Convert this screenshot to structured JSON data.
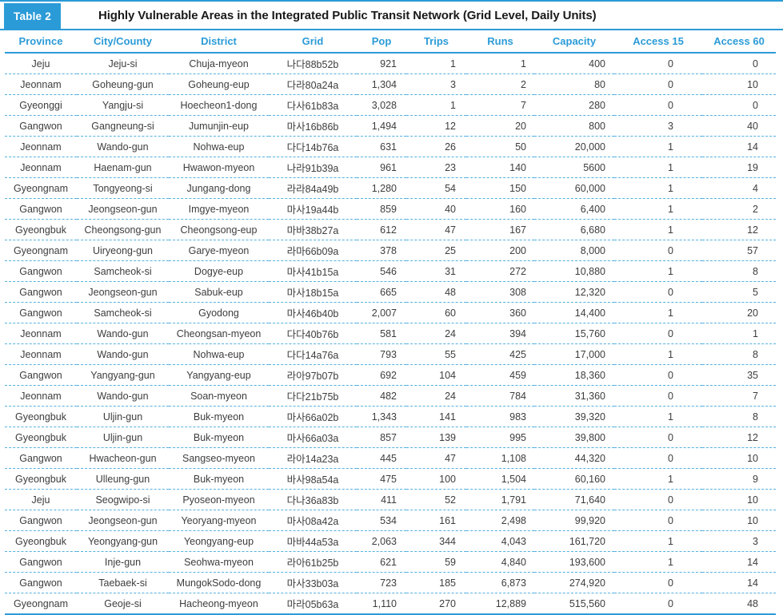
{
  "colors": {
    "accent": "#2b9bd7",
    "dashed": "#55b1e0"
  },
  "caption": {
    "label": "Table 2",
    "title": "Highly Vulnerable Areas in the Integrated Public Transit Network (Grid Level, Daily Units)"
  },
  "table": {
    "columns": [
      "Province",
      "City/County",
      "District",
      "Grid",
      "Pop",
      "Trips",
      "Runs",
      "Capacity",
      "Access 15",
      "Access 60"
    ],
    "rows": [
      [
        "Jeju",
        "Jeju-si",
        "Chuja-myeon",
        "나다88b52b",
        "921",
        "1",
        "1",
        "400",
        "0",
        "0"
      ],
      [
        "Jeonnam",
        "Goheung-gun",
        "Goheung-eup",
        "다라80a24a",
        "1,304",
        "3",
        "2",
        "80",
        "0",
        "10"
      ],
      [
        "Gyeonggi",
        "Yangju-si",
        "Hoecheon1-dong",
        "다사61b83a",
        "3,028",
        "1",
        "7",
        "280",
        "0",
        "0"
      ],
      [
        "Gangwon",
        "Gangneung-si",
        "Jumunjin-eup",
        "마사16b86b",
        "1,494",
        "12",
        "20",
        "800",
        "3",
        "40"
      ],
      [
        "Jeonnam",
        "Wando-gun",
        "Nohwa-eup",
        "다다14b76a",
        "631",
        "26",
        "50",
        "20,000",
        "1",
        "14"
      ],
      [
        "Jeonnam",
        "Haenam-gun",
        "Hwawon-myeon",
        "나라91b39a",
        "961",
        "23",
        "140",
        "5600",
        "1",
        "19"
      ],
      [
        "Gyeongnam",
        "Tongyeong-si",
        "Jungang-dong",
        "라라84a49b",
        "1,280",
        "54",
        "150",
        "60,000",
        "1",
        "4"
      ],
      [
        "Gangwon",
        "Jeongseon-gun",
        "Imgye-myeon",
        "마사19a44b",
        "859",
        "40",
        "160",
        "6,400",
        "1",
        "2"
      ],
      [
        "Gyeongbuk",
        "Cheongsong-gun",
        "Cheongsong-eup",
        "마바38b27a",
        "612",
        "47",
        "167",
        "6,680",
        "1",
        "12"
      ],
      [
        "Gyeongnam",
        "Uiryeong-gun",
        "Garye-myeon",
        "라마66b09a",
        "378",
        "25",
        "200",
        "8,000",
        "0",
        "57"
      ],
      [
        "Gangwon",
        "Samcheok-si",
        "Dogye-eup",
        "마사41b15a",
        "546",
        "31",
        "272",
        "10,880",
        "1",
        "8"
      ],
      [
        "Gangwon",
        "Jeongseon-gun",
        "Sabuk-eup",
        "마사18b15a",
        "665",
        "48",
        "308",
        "12,320",
        "0",
        "5"
      ],
      [
        "Gangwon",
        "Samcheok-si",
        "Gyodong",
        "마사46b40b",
        "2,007",
        "60",
        "360",
        "14,400",
        "1",
        "20"
      ],
      [
        "Jeonnam",
        "Wando-gun",
        "Cheongsan-myeon",
        "다다40b76b",
        "581",
        "24",
        "394",
        "15,760",
        "0",
        "1"
      ],
      [
        "Jeonnam",
        "Wando-gun",
        "Nohwa-eup",
        "다다14a76a",
        "793",
        "55",
        "425",
        "17,000",
        "1",
        "8"
      ],
      [
        "Gangwon",
        "Yangyang-gun",
        "Yangyang-eup",
        "라아97b07b",
        "692",
        "104",
        "459",
        "18,360",
        "0",
        "35"
      ],
      [
        "Jeonnam",
        "Wando-gun",
        "Soan-myeon",
        "다다21b75b",
        "482",
        "24",
        "784",
        "31,360",
        "0",
        "7"
      ],
      [
        "Gyeongbuk",
        "Uljin-gun",
        "Buk-myeon",
        "마사66a02b",
        "1,343",
        "141",
        "983",
        "39,320",
        "1",
        "8"
      ],
      [
        "Gyeongbuk",
        "Uljin-gun",
        "Buk-myeon",
        "마사66a03a",
        "857",
        "139",
        "995",
        "39,800",
        "0",
        "12"
      ],
      [
        "Gangwon",
        "Hwacheon-gun",
        "Sangseo-myeon",
        "라아14a23a",
        "445",
        "47",
        "1,108",
        "44,320",
        "0",
        "10"
      ],
      [
        "Gyeongbuk",
        "Ulleung-gun",
        "Buk-myeon",
        "바사98a54a",
        "475",
        "100",
        "1,504",
        "60,160",
        "1",
        "9"
      ],
      [
        "Jeju",
        "Seogwipo-si",
        "Pyoseon-myeon",
        "다나36a83b",
        "411",
        "52",
        "1,791",
        "71,640",
        "0",
        "10"
      ],
      [
        "Gangwon",
        "Jeongseon-gun",
        "Yeoryang-myeon",
        "마사08a42a",
        "534",
        "161",
        "2,498",
        "99,920",
        "0",
        "10"
      ],
      [
        "Gyeongbuk",
        "Yeongyang-gun",
        "Yeongyang-eup",
        "마바44a53a",
        "2,063",
        "344",
        "4,043",
        "161,720",
        "1",
        "3"
      ],
      [
        "Gangwon",
        "Inje-gun",
        "Seohwa-myeon",
        "라아61b25b",
        "621",
        "59",
        "4,840",
        "193,600",
        "1",
        "14"
      ],
      [
        "Gangwon",
        "Taebaek-si",
        "MungokSodo-dong",
        "마사33b03a",
        "723",
        "185",
        "6,873",
        "274,920",
        "0",
        "14"
      ],
      [
        "Gyeongnam",
        "Geoje-si",
        "Hacheong-myeon",
        "마라05b63a",
        "1,110",
        "270",
        "12,889",
        "515,560",
        "0",
        "48"
      ]
    ]
  }
}
